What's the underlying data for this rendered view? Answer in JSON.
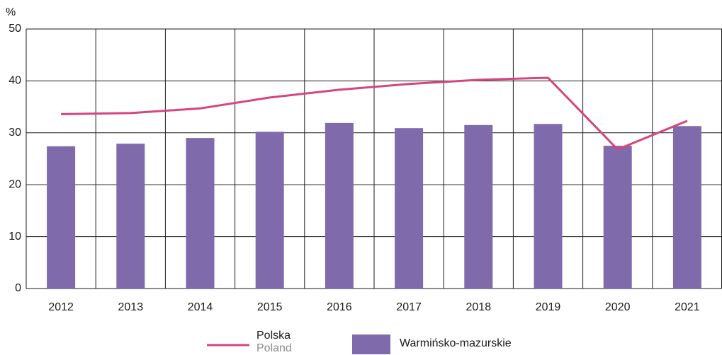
{
  "chart_data": {
    "type": "bar",
    "y_label": "%",
    "categories": [
      "2012",
      "2013",
      "2014",
      "2015",
      "2016",
      "2017",
      "2018",
      "2019",
      "2020",
      "2021"
    ],
    "series": [
      {
        "name": "Warmińsko-mazurskie",
        "type": "bar",
        "color": "#7f6aac",
        "values": [
          27.4,
          27.9,
          29.0,
          30.2,
          31.9,
          30.9,
          31.5,
          31.7,
          27.5,
          31.3
        ]
      },
      {
        "name": "Polska",
        "name_en": "Poland",
        "type": "line",
        "color": "#d6457e",
        "values": [
          33.6,
          33.8,
          34.7,
          36.8,
          38.3,
          39.4,
          40.2,
          40.6,
          26.8,
          32.3
        ]
      }
    ],
    "ylim": [
      0,
      50
    ],
    "yticks": [
      0,
      10,
      20,
      30,
      40,
      50
    ],
    "grid": true
  }
}
